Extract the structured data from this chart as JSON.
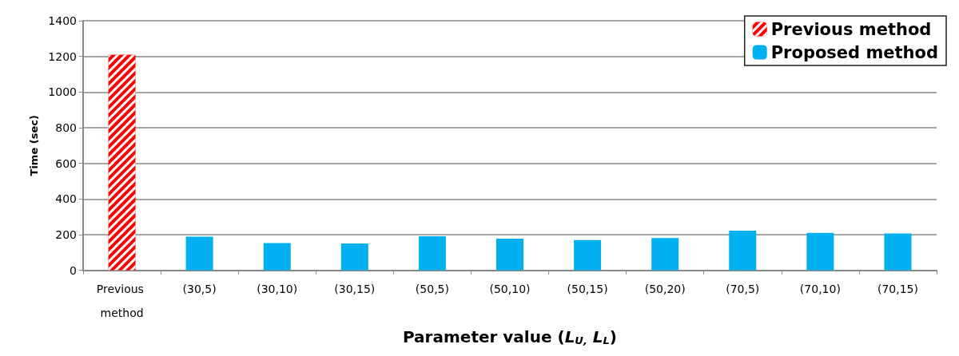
{
  "chart_data": {
    "type": "bar",
    "xlabel": "Parameter value (L$_{U,}$ L$_{L}$)",
    "ylabel": "Time (sec)",
    "categories": [
      "Previous method",
      "(30,5)",
      "(30,10)",
      "(30,15)",
      "(50,5)",
      "(50,10)",
      "(50,15)",
      "(50,20)",
      "(70,5)",
      "(70,10)",
      "(70,15)"
    ],
    "series": [
      {
        "name": "Previous method",
        "color": "#ff0000",
        "values": [
          1210,
          null,
          null,
          null,
          null,
          null,
          null,
          null,
          null,
          null,
          null
        ]
      },
      {
        "name": "Proposed method",
        "color": "#00b0f0",
        "values": [
          null,
          188,
          153,
          150,
          191,
          177,
          169,
          181,
          222,
          210,
          206
        ]
      }
    ],
    "ylim": [
      0,
      1400
    ],
    "yticks": [
      0,
      200,
      400,
      600,
      800,
      1000,
      1200,
      1400
    ],
    "grid": "y",
    "legend": "top right"
  }
}
